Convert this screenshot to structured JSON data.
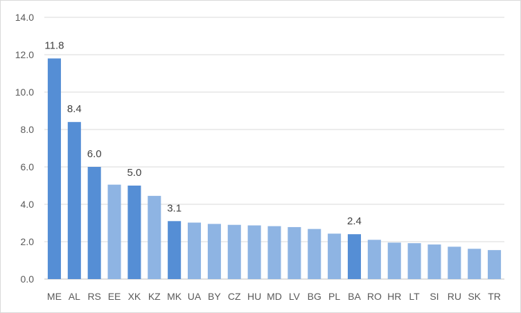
{
  "chart_data": {
    "type": "bar",
    "categories": [
      "ME",
      "AL",
      "RS",
      "EE",
      "XK",
      "KZ",
      "MK",
      "UA",
      "BY",
      "CZ",
      "HU",
      "MD",
      "LV",
      "BG",
      "PL",
      "BA",
      "RO",
      "HR",
      "LT",
      "SI",
      "RU",
      "SK",
      "TR"
    ],
    "values": [
      11.8,
      8.4,
      6.0,
      5.05,
      5.0,
      4.45,
      3.1,
      3.02,
      2.95,
      2.9,
      2.87,
      2.83,
      2.78,
      2.68,
      2.43,
      2.4,
      2.1,
      1.95,
      1.92,
      1.85,
      1.73,
      1.62,
      1.55
    ],
    "data_labels": {
      "ME": "11.8",
      "AL": "8.4",
      "RS": "6.0",
      "XK": "5.0",
      "MK": "3.1",
      "BA": "2.4"
    },
    "highlighted": [
      "ME",
      "AL",
      "RS",
      "XK",
      "MK",
      "BA"
    ],
    "ylim": [
      0,
      14
    ],
    "yticks": [
      "0.0",
      "2.0",
      "4.0",
      "6.0",
      "8.0",
      "10.0",
      "12.0",
      "14.0"
    ],
    "grid": true,
    "title": "",
    "xlabel": "",
    "ylabel": ""
  },
  "colors": {
    "highlight_bar": "#558ed5",
    "other_bar": "#8eb4e3",
    "gridline": "#d9d9d9",
    "axis": "#bfbfbf"
  }
}
